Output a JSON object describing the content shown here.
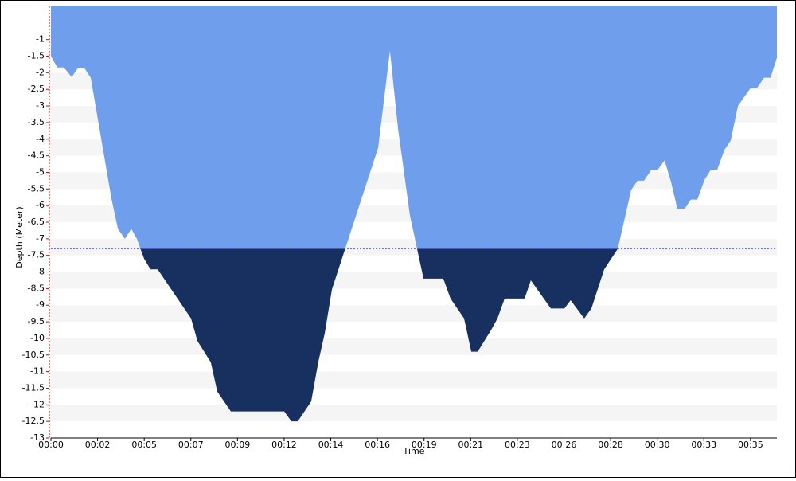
{
  "chart_data": {
    "type": "area",
    "x_label": "Time",
    "y_label": "Depth (Meter)",
    "x": [
      0,
      0.32,
      0.64,
      1.04,
      1.35,
      1.67,
      1.99,
      3.03,
      3.35,
      3.7,
      4.02,
      4.3,
      4.66,
      4.98,
      5.34,
      7.01,
      7.33,
      8.0,
      8.32,
      9.0,
      11.67,
      12.03,
      12.35,
      13.02,
      13.38,
      13.7,
      14.06,
      16.37,
      16.96,
      17.36,
      17.96,
      18.64,
      19.63,
      19.99,
      20.67,
      21.03,
      21.35,
      22.02,
      22.34,
      22.7,
      23.7,
      24.01,
      25.01,
      25.69,
      26.0,
      26.68,
      27.04,
      27.68,
      28.36,
      29.03,
      29.35,
      29.67,
      30.03,
      30.35,
      30.7,
      31.02,
      31.34,
      31.7,
      32.02,
      32.34,
      32.7,
      33.01,
      33.33,
      33.69,
      34.01,
      34.37,
      35.0,
      35.32,
      35.68,
      36.0,
      36.32
    ],
    "values": [
      -1.5,
      -1.84,
      -1.84,
      -2.13,
      -1.86,
      -1.86,
      -2.15,
      -5.8,
      -6.7,
      -7.0,
      -6.7,
      -7.0,
      -7.6,
      -7.92,
      -7.92,
      -9.4,
      -10.08,
      -10.72,
      -11.6,
      -12.2,
      -12.2,
      -12.5,
      -12.5,
      -11.9,
      -10.7,
      -9.84,
      -8.52,
      -4.26,
      -1.34,
      -3.66,
      -6.3,
      -8.2,
      -8.2,
      -8.8,
      -9.4,
      -10.4,
      -10.4,
      -9.75,
      -9.4,
      -8.8,
      -8.8,
      -8.25,
      -9.1,
      -9.1,
      -8.85,
      -9.4,
      -9.1,
      -7.92,
      -7.3,
      -5.53,
      -5.25,
      -5.25,
      -4.93,
      -4.93,
      -4.64,
      -5.28,
      -6.1,
      -6.1,
      -5.82,
      -5.82,
      -5.22,
      -4.93,
      -4.93,
      -4.33,
      -4.04,
      -3.0,
      -2.46,
      -2.46,
      -2.15,
      -2.15,
      -1.55
    ],
    "reference_line": -7.3,
    "color_above": "#6f9fec",
    "color_below": "#17305f",
    "reference_color": "#5a5ae6",
    "xlim": [
      0,
      36.32
    ],
    "ylim": [
      -13,
      0
    ],
    "xticks": [
      {
        "value": 0,
        "label": "00:00"
      },
      {
        "value": 2.333,
        "label": "00:02"
      },
      {
        "value": 4.667,
        "label": "00:05"
      },
      {
        "value": 7,
        "label": "00:07"
      },
      {
        "value": 9.333,
        "label": "00:09"
      },
      {
        "value": 11.667,
        "label": "00:12"
      },
      {
        "value": 14,
        "label": "00:14"
      },
      {
        "value": 16.333,
        "label": "00:16"
      },
      {
        "value": 18.667,
        "label": "00:19"
      },
      {
        "value": 21,
        "label": "00:21"
      },
      {
        "value": 23.333,
        "label": "00:23"
      },
      {
        "value": 25.667,
        "label": "00:26"
      },
      {
        "value": 28,
        "label": "00:28"
      },
      {
        "value": 30.333,
        "label": "00:30"
      },
      {
        "value": 32.667,
        "label": "00:33"
      },
      {
        "value": 35,
        "label": "00:35"
      }
    ],
    "yticks": [
      -1,
      -1.5,
      -2,
      -2.5,
      -3,
      -3.5,
      -4,
      -4.5,
      -5,
      -5.5,
      -6,
      -6.5,
      -7,
      -7.5,
      -8,
      -8.5,
      -9,
      -9.5,
      -10,
      -10.5,
      -11,
      -11.5,
      -12,
      -12.5,
      -13
    ],
    "grid": true
  }
}
